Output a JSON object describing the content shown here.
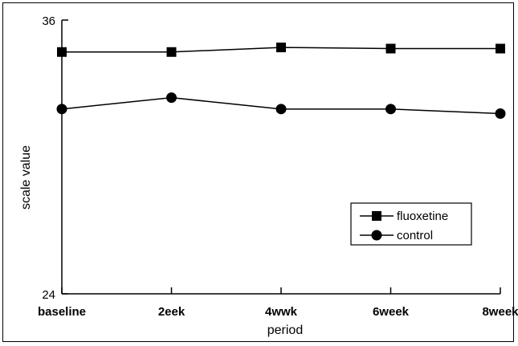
{
  "chart_data": {
    "type": "line",
    "categories": [
      "baseline",
      "2eek",
      "4wwk",
      "6week",
      "8week"
    ],
    "xlabel": "period",
    "ylabel": "scale value",
    "ylim": [
      24,
      36
    ],
    "y_ticks": [
      "36",
      "24"
    ],
    "grid": false,
    "legend_position": "lower-right",
    "series": [
      {
        "name": "fluoxetine",
        "marker": "square",
        "values": [
          34.6,
          34.6,
          34.8,
          34.75,
          34.75
        ],
        "color": "#000000"
      },
      {
        "name": "control",
        "marker": "circle",
        "values": [
          32.1,
          32.6,
          32.1,
          32.1,
          31.9
        ],
        "color": "#000000"
      }
    ]
  }
}
